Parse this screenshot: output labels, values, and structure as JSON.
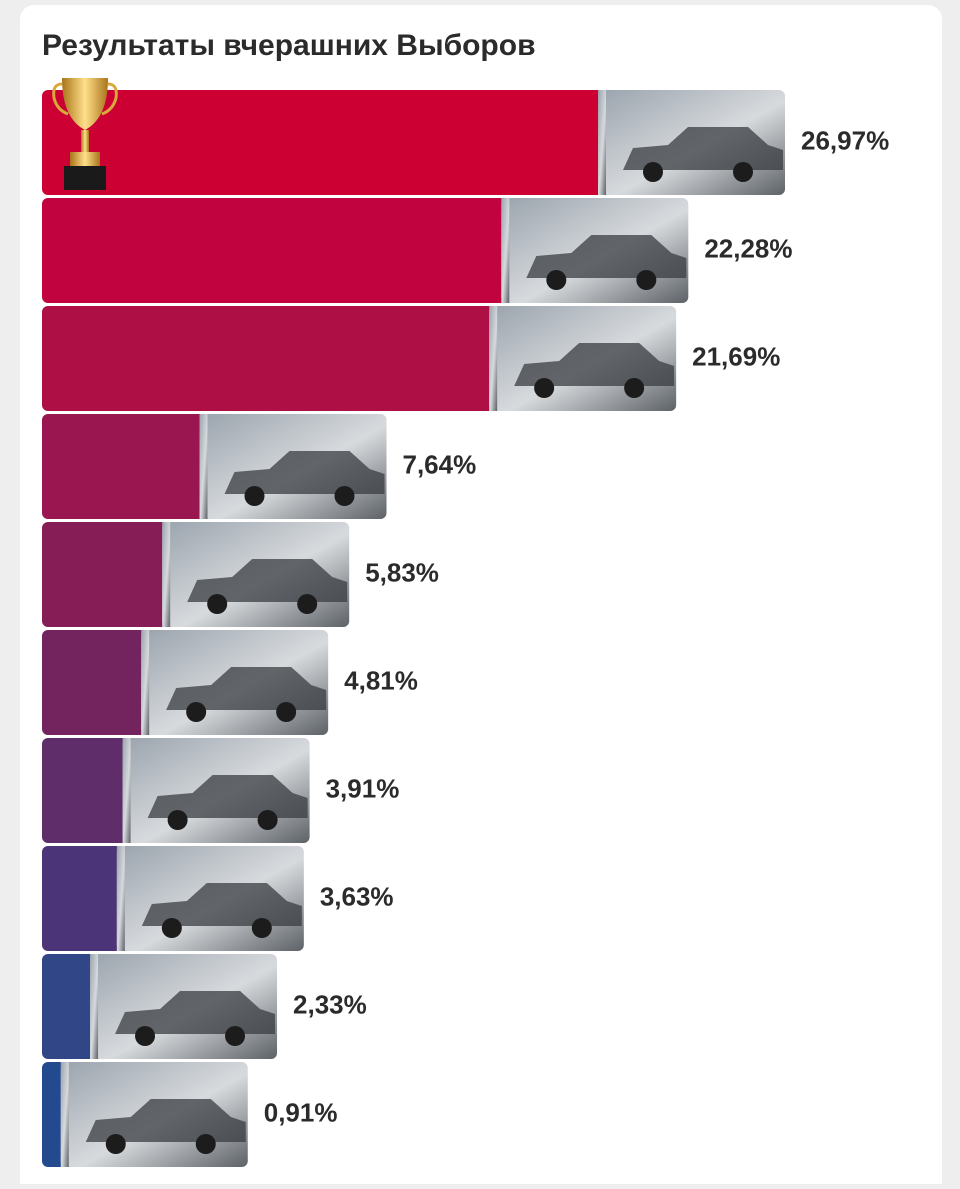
{
  "chart_data": {
    "type": "bar",
    "orientation": "horizontal",
    "title": "Результаты вчерашних Выборов",
    "values": [
      26.97,
      22.28,
      21.69,
      7.64,
      5.83,
      4.81,
      3.91,
      3.63,
      2.33,
      0.91
    ],
    "value_labels": [
      "26,97%",
      "22,28%",
      "21,69%",
      "7,64%",
      "5,83%",
      "4,81%",
      "3,91%",
      "3,63%",
      "2,33%",
      "0,91%"
    ],
    "colors": [
      "#cc0033",
      "#c1043f",
      "#ae0f45",
      "#991650",
      "#861d57",
      "#73235e",
      "#5f2d6a",
      "#4c3478",
      "#314687",
      "#234a8e"
    ]
  }
}
